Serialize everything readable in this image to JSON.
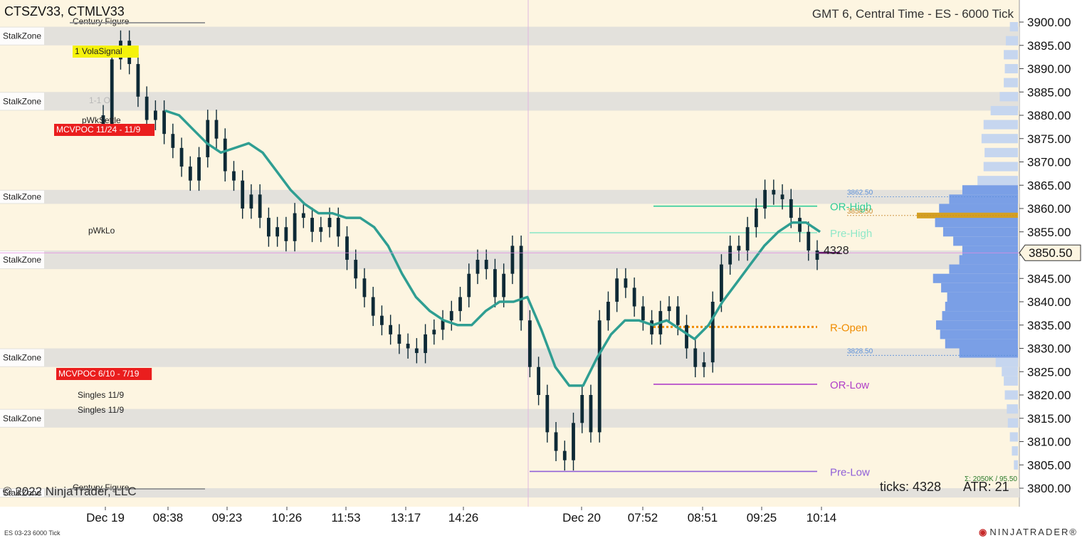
{
  "header": {
    "instruments": "CTSZV33, CTMLV33",
    "title": "GMT 6, Central Time - ES - 6000 Tick"
  },
  "copyright": "© 2022 NinjaTrader, LLC",
  "footer": {
    "instrument_tag": "ES 03-23 6000 Tick",
    "brand_name": "NINJATRADER",
    "brand_mark": "®"
  },
  "status": {
    "ticks": "ticks: 4328",
    "atr": "ATR: 21",
    "sigma": "Σ: 2050K / 95.50"
  },
  "price_marker": {
    "price": "3850.50",
    "tick_count": "4328"
  },
  "chart_data": {
    "type": "line",
    "y_axis": {
      "ticks": [
        "3900.00",
        "3895.00",
        "3890.00",
        "3885.00",
        "3880.00",
        "3875.00",
        "3870.00",
        "3865.00",
        "3860.00",
        "3855.00",
        "3850.00",
        "3845.00",
        "3840.00",
        "3835.00",
        "3830.00",
        "3825.00",
        "3820.00",
        "3815.00",
        "3810.00",
        "3805.00",
        "3800.00"
      ],
      "range": [
        3799,
        3902
      ]
    },
    "x_axis": {
      "ticks": [
        "Dec 19",
        "08:38",
        "09:23",
        "10:26",
        "11:53",
        "13:17",
        "14:26",
        "Dec 20",
        "07:52",
        "08:51",
        "09:25",
        "10:14"
      ]
    },
    "price_series": [
      3878,
      3892,
      3896,
      3891,
      3884,
      3879,
      3881,
      3876,
      3873,
      3869,
      3866,
      3871,
      3879,
      3875,
      3868,
      3866,
      3860,
      3863,
      3858,
      3854,
      3856,
      3853,
      3859,
      3858,
      3855,
      3856,
      3858,
      3854,
      3849,
      3845,
      3841,
      3837,
      3835,
      3833,
      3831,
      3830,
      3829,
      3833,
      3834,
      3836,
      3838,
      3841,
      3846,
      3849,
      3847,
      3841,
      3846,
      3852,
      3836,
      3826,
      3820,
      3812,
      3808,
      3806,
      3814,
      3820,
      3812,
      3836,
      3840,
      3845,
      3843,
      3839,
      3836,
      3833,
      3838,
      3839,
      3835,
      3830,
      3826,
      3827,
      3840,
      3848,
      3852,
      3851,
      3856,
      3860,
      3864,
      3863,
      3862,
      3858,
      3855,
      3851,
      3849
    ],
    "moving_average": [
      3881,
      3880,
      3877,
      3874,
      3872,
      3873,
      3874,
      3872,
      3868,
      3864,
      3861,
      3859,
      3859,
      3858,
      3858,
      3856,
      3852,
      3846,
      3841,
      3838,
      3836,
      3835,
      3835,
      3838,
      3840,
      3840,
      3841,
      3834,
      3826,
      3822,
      3822,
      3828,
      3833,
      3836,
      3836,
      3835,
      3836,
      3834,
      3832,
      3835,
      3840,
      3844,
      3848,
      3852,
      3855,
      3857,
      3857,
      3855
    ],
    "stalk_zones": [
      {
        "label": "StalkZone",
        "top": 3899,
        "bottom": 3895
      },
      {
        "label": "StalkZone",
        "top": 3885,
        "bottom": 3881
      },
      {
        "label": "StalkZone",
        "top": 3864,
        "bottom": 3861
      },
      {
        "label": "StalkZone",
        "top": 3851,
        "bottom": 3847
      },
      {
        "label": "StalkZone",
        "top": 3830,
        "bottom": 3826
      },
      {
        "label": "StalkZone",
        "top": 3817,
        "bottom": 3813
      },
      {
        "label": "StalkZone",
        "top": 3800,
        "bottom": 3798
      }
    ],
    "level_lines": [
      {
        "label": "OR-High",
        "price": 3860.5,
        "color": "#2ecc9a",
        "style": "solid"
      },
      {
        "label": "Pre-High",
        "price": 3854.8,
        "color": "#8fe8c8",
        "style": "solid"
      },
      {
        "label": "R-Open",
        "price": 3834.6,
        "color": "#f08c00",
        "style": "dotted"
      },
      {
        "label": "OR-Low",
        "price": 3822.3,
        "color": "#b040c8",
        "style": "solid"
      },
      {
        "label": "Pre-Low",
        "price": 3803.6,
        "color": "#9060d8",
        "style": "solid"
      }
    ],
    "small_levels": [
      {
        "label": "3862.50",
        "price": 3862.5,
        "color": "#5a8fd8"
      },
      {
        "label": "3858.50",
        "price": 3858.5,
        "color": "#c88a30"
      },
      {
        "label": "3828.50",
        "price": 3828.5,
        "color": "#5a8fd8"
      }
    ],
    "annotations": [
      {
        "label": "Century Figure",
        "style": "plain"
      },
      {
        "label": "1 VolaSignal",
        "style": "yellow"
      },
      {
        "label": "1-1 O",
        "style": "faint"
      },
      {
        "label": "pWkSettle",
        "style": "plain"
      },
      {
        "label": "MCVPOC 11/24 - 11/9",
        "style": "red"
      },
      {
        "label": "pWkLo",
        "style": "plain"
      },
      {
        "label": "MCVPOC 6/10 - 7/19",
        "style": "red"
      },
      {
        "label": "Singles 11/9",
        "style": "plain"
      },
      {
        "label": "Singles 11/9",
        "style": "plain"
      },
      {
        "label": "Century Figure",
        "style": "plain"
      }
    ],
    "volume_profile": [
      {
        "price": 3899,
        "size": 0.08
      },
      {
        "price": 3896,
        "size": 0.12
      },
      {
        "price": 3893,
        "size": 0.14
      },
      {
        "price": 3890,
        "size": 0.13
      },
      {
        "price": 3887,
        "size": 0.14
      },
      {
        "price": 3884,
        "size": 0.18
      },
      {
        "price": 3881,
        "size": 0.27
      },
      {
        "price": 3878,
        "size": 0.34
      },
      {
        "price": 3875,
        "size": 0.36
      },
      {
        "price": 3872,
        "size": 0.33
      },
      {
        "price": 3869,
        "size": 0.34
      },
      {
        "price": 3866,
        "size": 0.4
      },
      {
        "price": 3864,
        "size": 0.55
      },
      {
        "price": 3862,
        "size": 0.68
      },
      {
        "price": 3860,
        "size": 0.78
      },
      {
        "price": 3858.5,
        "size": 1.0
      },
      {
        "price": 3857,
        "size": 0.82
      },
      {
        "price": 3855,
        "size": 0.74
      },
      {
        "price": 3853,
        "size": 0.64
      },
      {
        "price": 3851,
        "size": 0.55
      },
      {
        "price": 3849,
        "size": 0.58
      },
      {
        "price": 3847,
        "size": 0.68
      },
      {
        "price": 3845,
        "size": 0.84
      },
      {
        "price": 3843,
        "size": 0.76
      },
      {
        "price": 3841,
        "size": 0.7
      },
      {
        "price": 3839,
        "size": 0.72
      },
      {
        "price": 3837,
        "size": 0.75
      },
      {
        "price": 3835,
        "size": 0.81
      },
      {
        "price": 3833,
        "size": 0.77
      },
      {
        "price": 3831,
        "size": 0.72
      },
      {
        "price": 3829,
        "size": 0.58
      },
      {
        "price": 3827,
        "size": 0.22
      },
      {
        "price": 3825,
        "size": 0.16
      },
      {
        "price": 3823,
        "size": 0.14
      },
      {
        "price": 3820,
        "size": 0.13
      },
      {
        "price": 3817,
        "size": 0.11
      },
      {
        "price": 3814,
        "size": 0.1
      },
      {
        "price": 3811,
        "size": 0.08
      },
      {
        "price": 3808,
        "size": 0.06
      },
      {
        "price": 3805,
        "size": 0.04
      }
    ]
  }
}
